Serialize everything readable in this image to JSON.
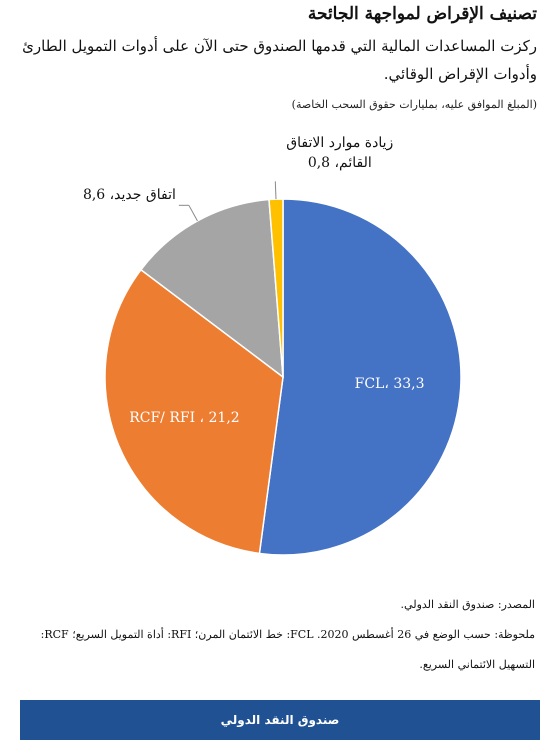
{
  "chart_data": {
    "type": "pie",
    "title": "تصنيف الإقراض لمواجهة الجائحة",
    "subtitle": "ركزت المساعدات المالية التي قدمها الصندوق حتى الآن على أدوات التمويل الطارئ وأدوات الإقراض الوقائي.",
    "unit_note": "(المبلغ الموافق عليه، بمليارات حقوق السحب الخاصة)",
    "values": [
      33.3,
      21.2,
      8.6,
      0.8
    ],
    "value_labels": [
      "FCL، 33,3",
      "RCF/ RFI ، 21,2",
      "اتفاق جديد، 8,6",
      "زيادة موارد الاتفاق القائم، 0,8"
    ],
    "colors": [
      "#4472c4",
      "#ed7d31",
      "#a5a5a5",
      "#ffc000"
    ]
  },
  "source": "المصدر: صندوق النقد الدولي.",
  "note": "ملحوظة: حسب الوضع في 26 أغسطس 2020. FCL: خط الائتمان المرن؛ RFI: أداة التمويل السريع؛ RCF: التسهيل الائتماني السريع.",
  "footer": "صندوق النقد الدولي"
}
